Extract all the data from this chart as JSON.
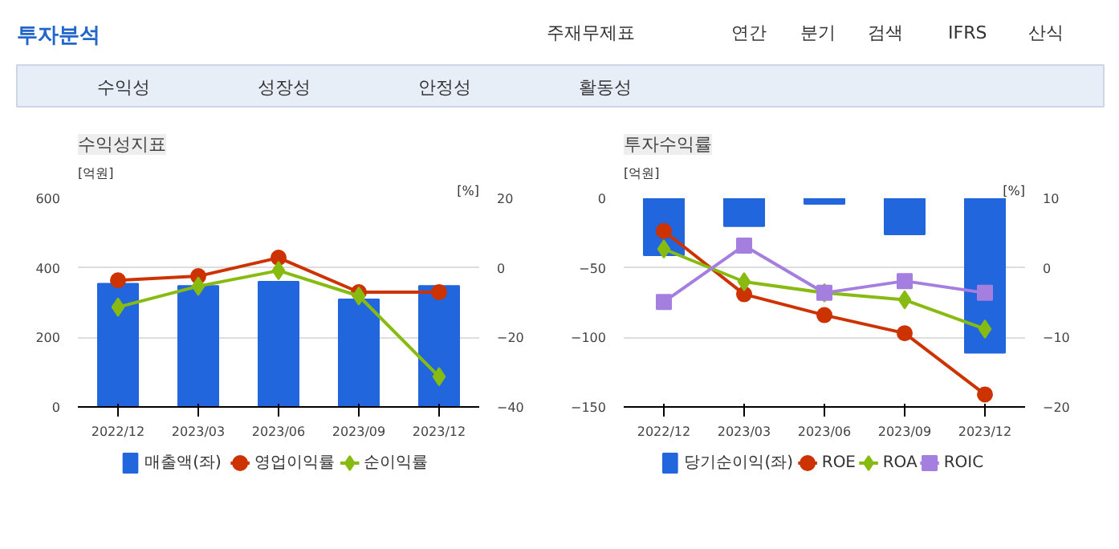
{
  "chart_data": [
    {
      "type": "other",
      "title": "투자분석",
      "annotations": [
        "주재무제표",
        "연간",
        "분기",
        "검색",
        "IFRS",
        "산식",
        "수익성",
        "성장성",
        "안정성",
        "활동성"
      ]
    },
    {
      "type": "bar",
      "title": "수익성지표",
      "ylabel": "[억원]",
      "y2label": "[%]",
      "categories": [
        "2022/12",
        "2023/03",
        "2023/06",
        "2023/09",
        "2023/12"
      ],
      "ylim": [
        0,
        600
      ],
      "yticks": [
        0,
        200,
        400,
        600
      ],
      "y2lim": [
        -40,
        20
      ],
      "y2ticks": [
        -40,
        -20,
        0,
        20
      ],
      "grid": "y",
      "legend": "bottom",
      "series": [
        {
          "name": "매출액(좌)",
          "type": "bar",
          "color": "#2166dd",
          "values": [
            354,
            348,
            360,
            309,
            348
          ]
        },
        {
          "name": "영업이익률",
          "type": "line",
          "axis": "y2",
          "marker": "circle",
          "color": "#cc3300",
          "values": [
            -3.6,
            -2.4,
            2.9,
            -7.0,
            -7.0
          ]
        },
        {
          "name": "순이익률",
          "type": "line",
          "axis": "y2",
          "marker": "diamond",
          "color": "#88bb11",
          "values": [
            -11.3,
            -5.3,
            -0.8,
            -8.1,
            -31.3
          ]
        }
      ]
    },
    {
      "type": "bar",
      "title": "투자수익률",
      "ylabel": "[억원]",
      "y2label": "[%]",
      "categories": [
        "2022/12",
        "2023/03",
        "2023/06",
        "2023/09",
        "2023/12"
      ],
      "ylim": [
        -150,
        0
      ],
      "yticks": [
        -150,
        -100,
        -50,
        0
      ],
      "y2lim": [
        -20,
        10
      ],
      "y2ticks": [
        -20,
        -10,
        0,
        10
      ],
      "grid": "y",
      "legend": "bottom",
      "series": [
        {
          "name": "당기순이익(좌)",
          "type": "bar",
          "color": "#2166dd",
          "values": [
            -41,
            -20,
            -4,
            -26,
            -111
          ]
        },
        {
          "name": "ROE",
          "type": "line",
          "axis": "y2",
          "marker": "circle",
          "color": "#cc3300",
          "values": [
            5.3,
            -3.8,
            -6.8,
            -9.4,
            -18.2
          ]
        },
        {
          "name": "ROA",
          "type": "line",
          "axis": "y2",
          "marker": "diamond",
          "color": "#88bb11",
          "values": [
            2.7,
            -2.0,
            -3.6,
            -4.6,
            -8.8
          ]
        },
        {
          "name": "ROIC",
          "type": "line",
          "axis": "y2",
          "marker": "square",
          "color": "#a57fe0",
          "values": [
            -4.9,
            3.2,
            -3.6,
            -1.9,
            -3.6
          ]
        }
      ]
    }
  ]
}
